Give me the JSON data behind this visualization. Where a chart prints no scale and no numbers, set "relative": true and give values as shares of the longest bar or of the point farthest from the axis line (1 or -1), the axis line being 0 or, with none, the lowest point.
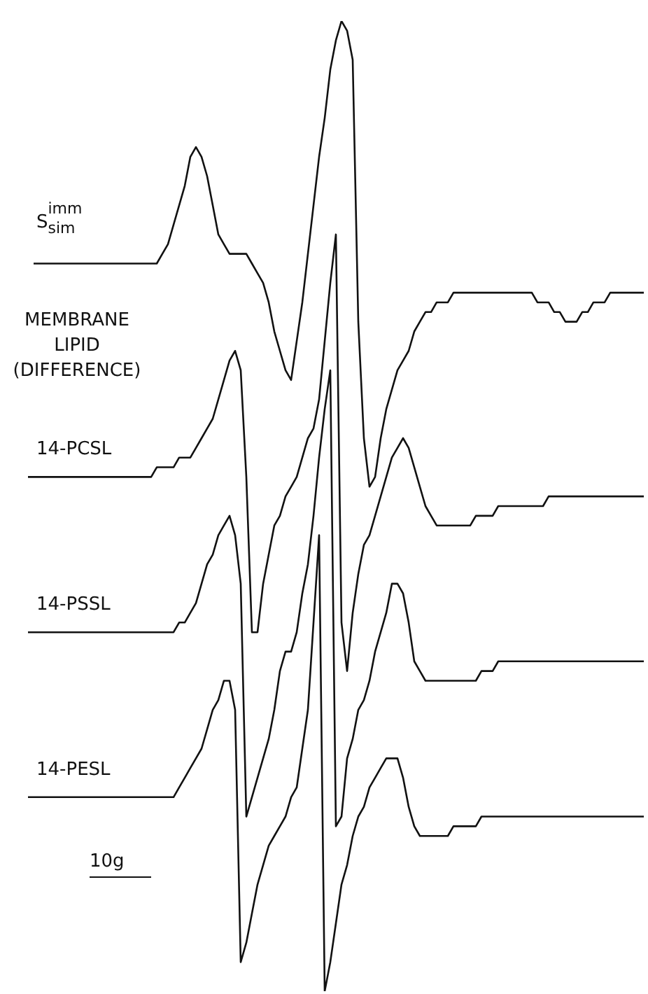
{
  "chart_data": {
    "type": "line",
    "relative": true,
    "categories": [
      null,
      null,
      null,
      null,
      null,
      null,
      null,
      null,
      null,
      null,
      null,
      null,
      null,
      null,
      null,
      null,
      null,
      null,
      null,
      null,
      null,
      null,
      null,
      null,
      null,
      null,
      null,
      null,
      null,
      null,
      null,
      null,
      null,
      null,
      null,
      null,
      null,
      null,
      null,
      null,
      null,
      null,
      null,
      null,
      null,
      null,
      null,
      null,
      null,
      null,
      null,
      null,
      null,
      null,
      null,
      null,
      null,
      null,
      null,
      null,
      null,
      null,
      null,
      null,
      null,
      null,
      null,
      null,
      null,
      null,
      null,
      null,
      null,
      null,
      null,
      null,
      null,
      null,
      null,
      null,
      null,
      null,
      null,
      null,
      null,
      null,
      null,
      null,
      null,
      null,
      null,
      null,
      null,
      null,
      null,
      null,
      null,
      null,
      null,
      null,
      null,
      null,
      null,
      null,
      null,
      null,
      null,
      null,
      null,
      null,
      null
    ],
    "series": [
      {
        "name": "S$_{sim}$$^{imm}$",
        "color": "#111111",
        "values": [
          null,
          0.75,
          0.75,
          0.75,
          0.75,
          0.75,
          0.75,
          0.75,
          0.75,
          0.75,
          0.75,
          0.75,
          0.75,
          0.75,
          0.75,
          0.75,
          0.75,
          0.75,
          0.75,
          0.75,
          0.75,
          0.75,
          0.75,
          0.75,
          0.76,
          0.77,
          0.79,
          0.81,
          0.83,
          0.86,
          0.87,
          0.86,
          0.84,
          0.81,
          0.78,
          0.77,
          0.76,
          0.76,
          0.76,
          0.76,
          0.75,
          0.74,
          0.73,
          0.71,
          0.68,
          0.66,
          0.64,
          0.63,
          0.67,
          0.71,
          0.76,
          0.81,
          0.86,
          0.9,
          0.95,
          0.98,
          1,
          0.99,
          0.96,
          0.69,
          0.57,
          0.52,
          0.53,
          0.57,
          0.6,
          0.62,
          0.64,
          0.65,
          0.66,
          0.68,
          0.69,
          0.7,
          0.7,
          0.71,
          0.71,
          0.71,
          0.72,
          0.72,
          0.72,
          0.72,
          0.72,
          0.72,
          0.72,
          0.72,
          0.72,
          0.72,
          0.72,
          0.72,
          0.72,
          0.72,
          0.72,
          0.71,
          0.71,
          0.71,
          0.7,
          0.7,
          0.69,
          0.69,
          0.69,
          0.7,
          0.7,
          0.71,
          0.71,
          0.71,
          0.72,
          0.72,
          0.72,
          0.72,
          0.72,
          0.72,
          0.72
        ]
      },
      {
        "name": "14-PCSL",
        "color": "#111111",
        "values": [
          0.53,
          0.53,
          0.53,
          0.53,
          0.53,
          0.53,
          0.53,
          0.53,
          0.53,
          0.53,
          0.53,
          0.53,
          0.53,
          0.53,
          0.53,
          0.53,
          0.53,
          0.53,
          0.53,
          0.53,
          0.53,
          0.53,
          0.53,
          0.54,
          0.54,
          0.54,
          0.54,
          0.55,
          0.55,
          0.55,
          0.56,
          0.57,
          0.58,
          0.59,
          0.61,
          0.63,
          0.65,
          0.66,
          0.64,
          0.53,
          0.37,
          0.37,
          0.42,
          0.45,
          0.48,
          0.49,
          0.51,
          0.52,
          0.53,
          0.55,
          0.57,
          0.58,
          0.61,
          0.67,
          0.73,
          0.78,
          0.38,
          0.33,
          0.39,
          0.43,
          0.46,
          0.47,
          0.49,
          0.51,
          0.53,
          0.55,
          0.56,
          0.57,
          0.56,
          0.54,
          0.52,
          0.5,
          0.49,
          0.48,
          0.48,
          0.48,
          0.48,
          0.48,
          0.48,
          0.48,
          0.49,
          0.49,
          0.49,
          0.49,
          0.5,
          0.5,
          0.5,
          0.5,
          0.5,
          0.5,
          0.5,
          0.5,
          0.5,
          0.51,
          0.51,
          0.51,
          0.51,
          0.51,
          0.51,
          0.51,
          0.51,
          0.51,
          0.51,
          0.51,
          0.51,
          0.51,
          0.51,
          0.51,
          0.51,
          0.51,
          0.51
        ]
      },
      {
        "name": "14-PSSL",
        "color": "#111111",
        "values": [
          0.37,
          0.37,
          0.37,
          0.37,
          0.37,
          0.37,
          0.37,
          0.37,
          0.37,
          0.37,
          0.37,
          0.37,
          0.37,
          0.37,
          0.37,
          0.37,
          0.37,
          0.37,
          0.37,
          0.37,
          0.37,
          0.37,
          0.37,
          0.37,
          0.37,
          0.37,
          0.37,
          0.38,
          0.38,
          0.39,
          0.4,
          0.42,
          0.44,
          0.45,
          0.47,
          0.48,
          0.49,
          0.47,
          0.42,
          0.18,
          0.2,
          0.22,
          0.24,
          0.26,
          0.29,
          0.33,
          0.35,
          0.35,
          0.37,
          0.41,
          0.44,
          0.49,
          0.55,
          0.6,
          0.64,
          0.17,
          0.18,
          0.24,
          0.26,
          0.29,
          0.3,
          0.32,
          0.35,
          0.37,
          0.39,
          0.42,
          0.42,
          0.41,
          0.38,
          0.34,
          0.33,
          0.32,
          0.32,
          0.32,
          0.32,
          0.32,
          0.32,
          0.32,
          0.32,
          0.32,
          0.32,
          0.33,
          0.33,
          0.33,
          0.34,
          0.34,
          0.34,
          0.34,
          0.34,
          0.34,
          0.34,
          0.34,
          0.34,
          0.34,
          0.34,
          0.34,
          0.34,
          0.34,
          0.34,
          0.34,
          0.34,
          0.34,
          0.34,
          0.34,
          0.34,
          0.34,
          0.34,
          0.34,
          0.34,
          0.34,
          0.34
        ]
      },
      {
        "name": "14-PESL",
        "color": "#111111",
        "values": [
          0.2,
          0.2,
          0.2,
          0.2,
          0.2,
          0.2,
          0.2,
          0.2,
          0.2,
          0.2,
          0.2,
          0.2,
          0.2,
          0.2,
          0.2,
          0.2,
          0.2,
          0.2,
          0.2,
          0.2,
          0.2,
          0.2,
          0.2,
          0.2,
          0.2,
          0.2,
          0.2,
          0.21,
          0.22,
          0.23,
          0.24,
          0.25,
          0.27,
          0.29,
          0.3,
          0.32,
          0.32,
          0.29,
          0.03,
          0.05,
          0.08,
          0.11,
          0.13,
          0.15,
          0.16,
          0.17,
          0.18,
          0.2,
          0.21,
          0.25,
          0.29,
          0.38,
          0.47,
          0,
          0.03,
          0.07,
          0.11,
          0.13,
          0.16,
          0.18,
          0.19,
          0.21,
          0.22,
          0.23,
          0.24,
          0.24,
          0.24,
          0.22,
          0.19,
          0.17,
          0.16,
          0.16,
          0.16,
          0.16,
          0.16,
          0.16,
          0.17,
          0.17,
          0.17,
          0.17,
          0.17,
          0.18,
          0.18,
          0.18,
          0.18,
          0.18,
          0.18,
          0.18,
          0.18,
          0.18,
          0.18,
          0.18,
          0.18,
          0.18,
          0.18,
          0.18,
          0.18,
          0.18,
          0.18,
          0.18,
          0.18,
          0.18,
          0.18,
          0.18,
          0.18,
          0.18,
          0.18,
          0.18,
          0.18,
          0.18,
          0.18
        ]
      }
    ],
    "annotations": [
      "MEMBRANE LIPID (DIFFERENCE)",
      "10g"
    ]
  }
}
